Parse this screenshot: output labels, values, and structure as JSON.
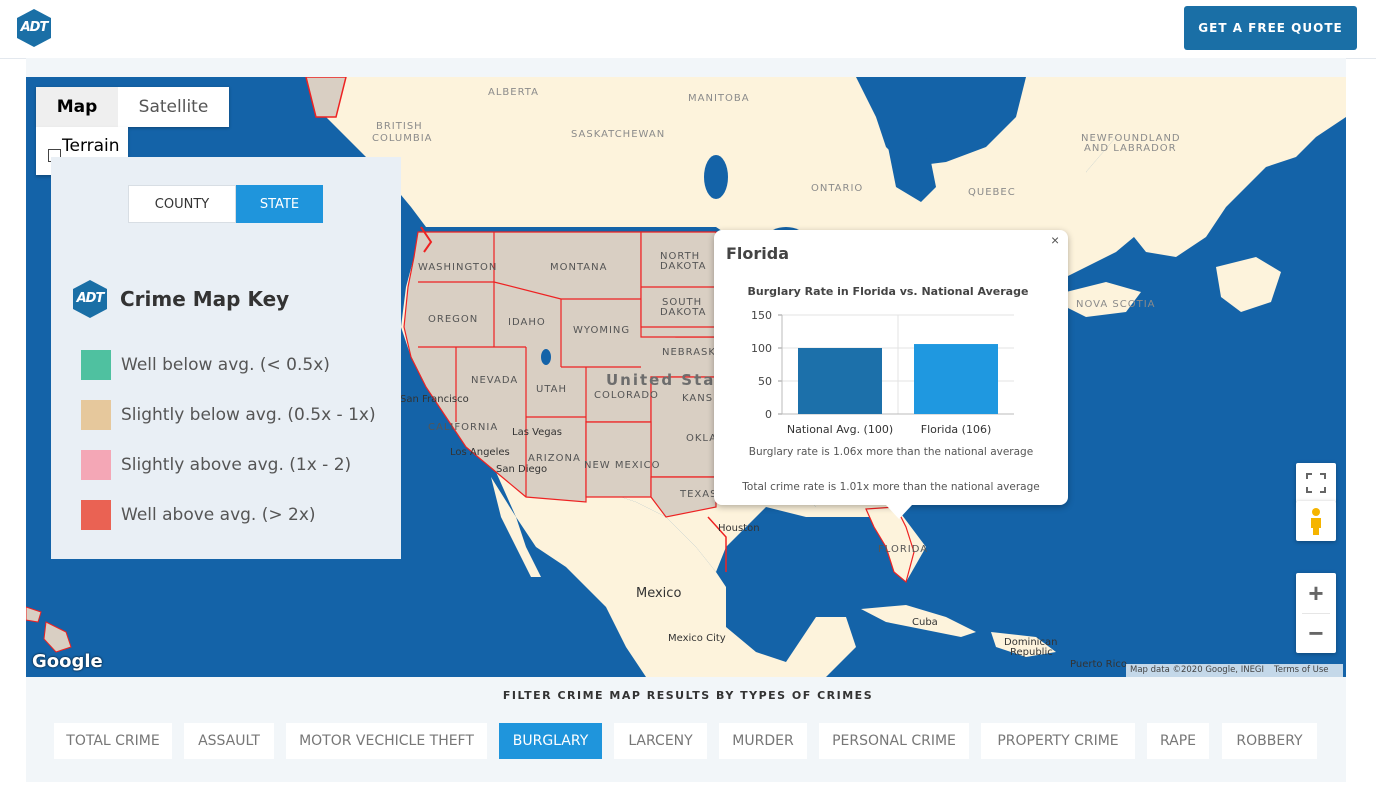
{
  "header": {
    "logo_text": "ADT",
    "quote_button": "GET A FREE QUOTE"
  },
  "map": {
    "type_controls": {
      "map": "Map",
      "satellite": "Satellite",
      "terrain": "Terrain"
    },
    "labels": {
      "alberta": "ALBERTA",
      "manitoba": "MANITOBA",
      "british_columbia_1": "BRITISH",
      "british_columbia_2": "COLUMBIA",
      "saskatchewan": "SASKATCHEWAN",
      "ontario": "ONTARIO",
      "quebec": "QUEBEC",
      "newfoundland_1": "NEWFOUNDLAND",
      "newfoundland_2": "AND LABRADOR",
      "nova_scotia": "NOVA SCOTIA",
      "washington": "WASHINGTON",
      "montana": "MONTANA",
      "north_dakota_1": "NORTH",
      "north_dakota_2": "DAKOTA",
      "south_dakota_1": "SOUTH",
      "south_dakota_2": "DAKOTA",
      "oregon": "OREGON",
      "idaho": "IDAHO",
      "wyoming": "WYOMING",
      "nebraska": "NEBRASK",
      "nevada": "NEVADA",
      "utah": "UTAH",
      "colorado": "COLORADO",
      "kansas": "KANS",
      "united_states": "United Stat",
      "california": "CALIFORNIA",
      "arizona": "ARIZONA",
      "new_mexico": "NEW MEXICO",
      "oklahoma": "OKLA",
      "texas": "TEXAS",
      "florida": "FLORIDA",
      "san_francisco": "San Francisco",
      "las_vegas": "Las Vegas",
      "los_angeles": "Los Angeles",
      "san_diego": "San Diego",
      "houston": "Houston",
      "mexico": "Mexico",
      "mexico_city": "Mexico City",
      "cuba": "Cuba",
      "dominican_1": "Dominican",
      "dominican_2": "Republic",
      "puerto_rico": "Puerto Rico"
    },
    "google_logo": "Google",
    "attribution": "Map data ©2020 Google, INEGI",
    "terms": "Terms of Use",
    "zoom_in": "+",
    "zoom_out": "−"
  },
  "key": {
    "toggle": {
      "county": "COUNTY",
      "state": "STATE",
      "selected": "STATE"
    },
    "logo_text": "ADT",
    "title": "Crime Map Key",
    "legend": [
      {
        "label": "Well below avg. (< 0.5x)",
        "color": "#4fc1a0"
      },
      {
        "label": "Slightly below avg. (0.5x - 1x)",
        "color": "#e6c89c"
      },
      {
        "label": "Slightly above avg. (1x - 2)",
        "color": "#f4a7b6"
      },
      {
        "label": "Well above avg. (> 2x)",
        "color": "#ea6253"
      }
    ]
  },
  "popup": {
    "title": "Florida",
    "close": "×",
    "note_burglary": "Burglary rate is 1.06x more than the national average",
    "note_total": "Total crime rate is 1.01x more than the national average"
  },
  "chart_data": {
    "type": "bar",
    "title": "Burglary Rate in Florida vs. National Average",
    "categories": [
      "National Avg. (100)",
      "Florida (106)"
    ],
    "values": [
      100,
      106
    ],
    "colors": [
      "#1c70aa",
      "#1f98e0"
    ],
    "yticks": [
      0,
      50,
      100,
      150
    ],
    "ylim": [
      0,
      150
    ],
    "xlabel": "",
    "ylabel": ""
  },
  "filters": {
    "title": "FILTER CRIME MAP RESULTS BY TYPES OF CRIMES",
    "items": [
      "TOTAL CRIME",
      "ASSAULT",
      "MOTOR VECHICLE THEFT",
      "BURGLARY",
      "LARCENY",
      "MURDER",
      "PERSONAL CRIME",
      "PROPERTY CRIME",
      "RAPE",
      "ROBBERY"
    ],
    "active": "BURGLARY"
  }
}
